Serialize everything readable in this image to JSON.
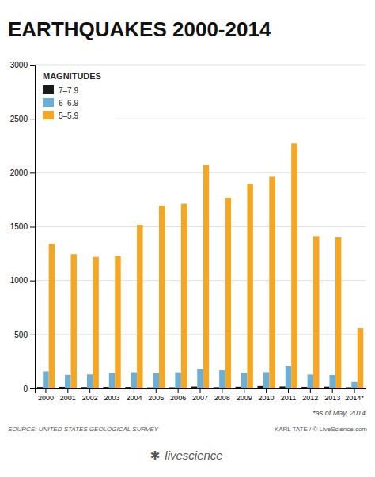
{
  "chart_data": {
    "type": "bar",
    "title": "EARTHQUAKES 2000-2014",
    "categories": [
      "2000",
      "2001",
      "2002",
      "2003",
      "2004",
      "2005",
      "2006",
      "2007",
      "2008",
      "2009",
      "2010",
      "2011",
      "2012",
      "2013",
      "2014*"
    ],
    "series": [
      {
        "name": "7–7.9",
        "color": "#1a1a1a",
        "values": [
          14,
          15,
          13,
          14,
          14,
          10,
          11,
          18,
          12,
          16,
          23,
          19,
          15,
          17,
          11
        ]
      },
      {
        "name": "6–6.9",
        "color": "#6baed6",
        "values": [
          158,
          126,
          130,
          140,
          150,
          140,
          149,
          178,
          168,
          144,
          151,
          205,
          129,
          125,
          60
        ]
      },
      {
        "name": "5–5.9",
        "color": "#f5a623",
        "values": [
          1340,
          1245,
          1220,
          1225,
          1515,
          1693,
          1712,
          2074,
          1768,
          1896,
          1963,
          2271,
          1413,
          1402,
          557
        ]
      }
    ],
    "legend_title": "MAGNITUDES",
    "legend": "upper left",
    "ylim": [
      0,
      3000
    ],
    "yticks": [
      0,
      500,
      1000,
      1500,
      2000,
      2500,
      3000
    ],
    "grid": true,
    "annotations": [
      "*as of May, 2014",
      "SOURCE: UNITED STATES GEOLOGICAL SURVEY",
      "KARL TATE / © LiveScience.com",
      "livescience",
      "✱"
    ]
  }
}
